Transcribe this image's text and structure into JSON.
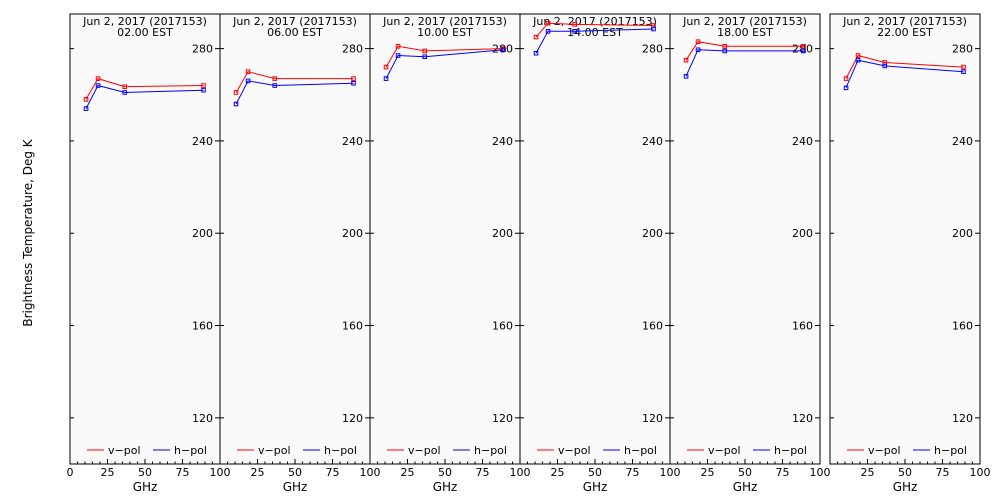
{
  "colors": {
    "background": "#ffffff",
    "panel_background": "#fafafa",
    "v_pol": "#ff0000",
    "h_pol": "#0000ff",
    "axis": "#000000"
  },
  "ylabel": "Brightness Temperature, Deg K",
  "xlabel": "GHz",
  "date_label": "Jun  2, 2017 (2017153)",
  "legend": {
    "v_pol": "v−pol",
    "h_pol": "h−pol"
  },
  "chart_data": [
    {
      "type": "line",
      "title": "Jun  2, 2017 (2017153)",
      "subtitle": "02.00 EST",
      "xlabel": "GHz",
      "ylabel": "Brightness Temperature, Deg K",
      "xlim": [
        0,
        100
      ],
      "ylim": [
        100,
        295
      ],
      "x_ticks": [
        0,
        25,
        50,
        75,
        100
      ],
      "x_tick_labels": [
        "0",
        "25",
        "50",
        "75",
        "100"
      ],
      "y_ticks": [
        120,
        160,
        200,
        240,
        280
      ],
      "series": [
        {
          "name": "v−pol",
          "x": [
            10.7,
            18.7,
            36.5,
            89.0
          ],
          "values": [
            258,
            267,
            263.5,
            264
          ]
        },
        {
          "name": "h−pol",
          "x": [
            10.7,
            18.7,
            36.5,
            89.0
          ],
          "values": [
            254,
            264,
            261,
            262
          ]
        }
      ]
    },
    {
      "type": "line",
      "title": "Jun  2, 2017 (2017153)",
      "subtitle": "06.00 EST",
      "xlabel": "GHz",
      "xlim": [
        0,
        100
      ],
      "ylim": [
        100,
        295
      ],
      "x_ticks": [
        0,
        25,
        50,
        75,
        100
      ],
      "x_tick_labels": [
        "",
        "25",
        "50",
        "75",
        "100"
      ],
      "y_ticks": [
        120,
        160,
        200,
        240,
        280
      ],
      "series": [
        {
          "name": "v−pol",
          "x": [
            10.7,
            18.7,
            36.5,
            89.0
          ],
          "values": [
            261,
            270,
            267,
            267
          ]
        },
        {
          "name": "h−pol",
          "x": [
            10.7,
            18.7,
            36.5,
            89.0
          ],
          "values": [
            256,
            266,
            264,
            265
          ]
        }
      ]
    },
    {
      "type": "line",
      "title": "Jun  2, 2017 (2017153)",
      "subtitle": "10.00 EST",
      "xlabel": "GHz",
      "xlim": [
        0,
        100
      ],
      "ylim": [
        100,
        295
      ],
      "x_ticks": [
        0,
        25,
        50,
        75,
        100
      ],
      "x_tick_labels": [
        "",
        "25",
        "50",
        "75",
        "100"
      ],
      "y_ticks": [
        120,
        160,
        200,
        240,
        280
      ],
      "series": [
        {
          "name": "v−pol",
          "x": [
            10.7,
            18.7,
            36.5,
            89.0
          ],
          "values": [
            272,
            281,
            279,
            280
          ]
        },
        {
          "name": "h−pol",
          "x": [
            10.7,
            18.7,
            36.5,
            89.0
          ],
          "values": [
            267,
            277,
            276.5,
            279.5
          ]
        }
      ]
    },
    {
      "type": "line",
      "title": "Jun  2, 2017 (2017153)",
      "subtitle": "14.00 EST",
      "xlabel": "GHz",
      "xlim": [
        0,
        100
      ],
      "ylim": [
        100,
        295
      ],
      "x_ticks": [
        0,
        25,
        50,
        75,
        100
      ],
      "x_tick_labels": [
        "",
        "25",
        "50",
        "75",
        "100"
      ],
      "y_ticks": [
        120,
        160,
        200,
        240,
        280
      ],
      "series": [
        {
          "name": "v−pol",
          "x": [
            10.7,
            18.7,
            36.5,
            89.0
          ],
          "values": [
            285,
            291,
            290.5,
            290
          ]
        },
        {
          "name": "h−pol",
          "x": [
            10.7,
            18.7,
            36.5,
            89.0
          ],
          "values": [
            278,
            287.5,
            287.5,
            288.5
          ]
        }
      ]
    },
    {
      "type": "line",
      "title": "Jun  2, 2017 (2017153)",
      "subtitle": "18.00 EST",
      "xlabel": "GHz",
      "xlim": [
        0,
        100
      ],
      "ylim": [
        100,
        295
      ],
      "x_ticks": [
        0,
        25,
        50,
        75,
        100
      ],
      "x_tick_labels": [
        "",
        "25",
        "50",
        "75",
        "100"
      ],
      "y_ticks": [
        120,
        160,
        200,
        240,
        280
      ],
      "series": [
        {
          "name": "v−pol",
          "x": [
            10.7,
            18.7,
            36.5,
            89.0
          ],
          "values": [
            275,
            283,
            281,
            281
          ]
        },
        {
          "name": "h−pol",
          "x": [
            10.7,
            18.7,
            36.5,
            89.0
          ],
          "values": [
            268,
            279.5,
            279,
            279
          ]
        }
      ]
    },
    {
      "type": "line",
      "title": "Jun  2, 2017 (2017153)",
      "subtitle": "22.00 EST",
      "xlabel": "GHz",
      "xlim": [
        0,
        100
      ],
      "ylim": [
        100,
        295
      ],
      "x_ticks": [
        0,
        25,
        50,
        75,
        100
      ],
      "x_tick_labels": [
        "",
        "25",
        "50",
        "75",
        "100"
      ],
      "y_ticks": [
        120,
        160,
        200,
        240,
        280
      ],
      "series": [
        {
          "name": "v−pol",
          "x": [
            10.7,
            18.7,
            36.5,
            89.0
          ],
          "values": [
            267,
            277,
            274,
            272
          ]
        },
        {
          "name": "h−pol",
          "x": [
            10.7,
            18.7,
            36.5,
            89.0
          ],
          "values": [
            263,
            275,
            272.5,
            270
          ]
        }
      ]
    }
  ]
}
